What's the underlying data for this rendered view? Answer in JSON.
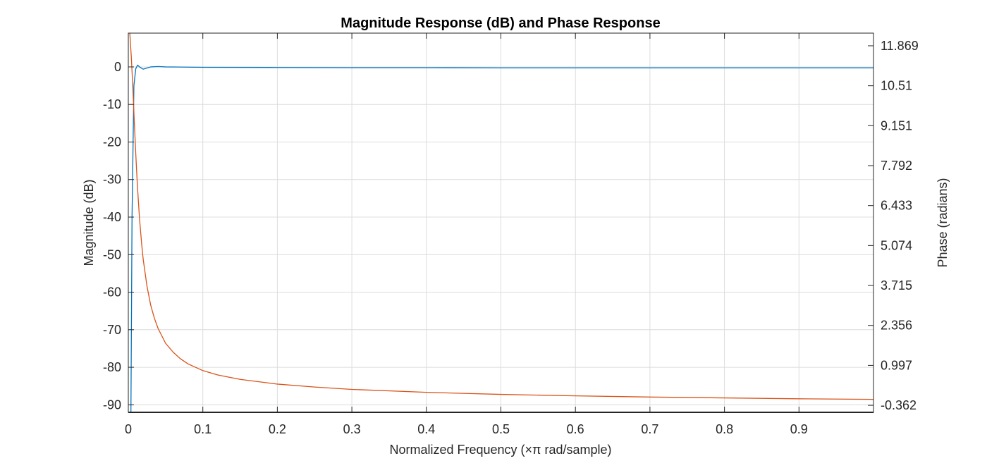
{
  "chart_data": {
    "type": "line",
    "title": "Magnitude Response (dB) and Phase Response",
    "xlabel": "Normalized Frequency (×π rad/sample)",
    "ylabel_left": "Magnitude (dB)",
    "ylabel_right": "Phase (radians)",
    "xlim": [
      0,
      1
    ],
    "ylim_left": [
      -92,
      9
    ],
    "ylim_right": [
      -0.6,
      12.3
    ],
    "x_ticks": [
      "0",
      "0.1",
      "0.2",
      "0.3",
      "0.4",
      "0.5",
      "0.6",
      "0.7",
      "0.8",
      "0.9"
    ],
    "x_tick_values": [
      0,
      0.1,
      0.2,
      0.3,
      0.4,
      0.5,
      0.6,
      0.7,
      0.8,
      0.9
    ],
    "y_left_ticks": [
      "0",
      "-10",
      "-20",
      "-30",
      "-40",
      "-50",
      "-60",
      "-70",
      "-80",
      "-90"
    ],
    "y_left_tick_values": [
      0,
      -10,
      -20,
      -30,
      -40,
      -50,
      -60,
      -70,
      -80,
      -90
    ],
    "y_right_ticks": [
      "11.869",
      "10.51",
      "9.151",
      "7.792",
      "6.433",
      "5.074",
      "3.715",
      "2.356",
      "0.997",
      "-0.362"
    ],
    "y_right_tick_values": [
      11.869,
      10.51,
      9.151,
      7.792,
      6.433,
      5.074,
      3.715,
      2.356,
      0.997,
      -0.362
    ],
    "grid": true,
    "series": [
      {
        "axis": "left",
        "color": "#0072bd",
        "x": [
          0,
          0.001,
          0.0035,
          0.005,
          0.0075,
          0.01,
          0.0125,
          0.015,
          0.02,
          0.025,
          0.03,
          0.04,
          0.05,
          0.1,
          0.2,
          0.3,
          0.4,
          0.5,
          0.6,
          0.7,
          0.8,
          0.9,
          1.0
        ],
        "y": [
          -92,
          -92,
          -92,
          -40,
          -5,
          -0.5,
          0.5,
          0,
          -0.6,
          -0.3,
          0,
          0.1,
          0,
          -0.1,
          -0.15,
          -0.2,
          -0.2,
          -0.25,
          -0.25,
          -0.25,
          -0.25,
          -0.25,
          -0.25
        ]
      },
      {
        "axis": "right",
        "color": "#d95319",
        "x": [
          0,
          0.002,
          0.004,
          0.006,
          0.008,
          0.01,
          0.012,
          0.015,
          0.018,
          0.02,
          0.025,
          0.03,
          0.035,
          0.04,
          0.05,
          0.06,
          0.07,
          0.08,
          0.1,
          0.12,
          0.15,
          0.2,
          0.25,
          0.3,
          0.4,
          0.5,
          0.6,
          0.7,
          0.8,
          0.9,
          1.0
        ],
        "y": [
          12.6,
          12.3,
          11.5,
          10.5,
          9.3,
          8.2,
          7.2,
          6.0,
          5.1,
          4.6,
          3.7,
          3.05,
          2.6,
          2.25,
          1.75,
          1.45,
          1.22,
          1.05,
          0.82,
          0.67,
          0.52,
          0.36,
          0.26,
          0.18,
          0.08,
          0.01,
          -0.04,
          -0.08,
          -0.11,
          -0.14,
          -0.16
        ]
      }
    ]
  }
}
